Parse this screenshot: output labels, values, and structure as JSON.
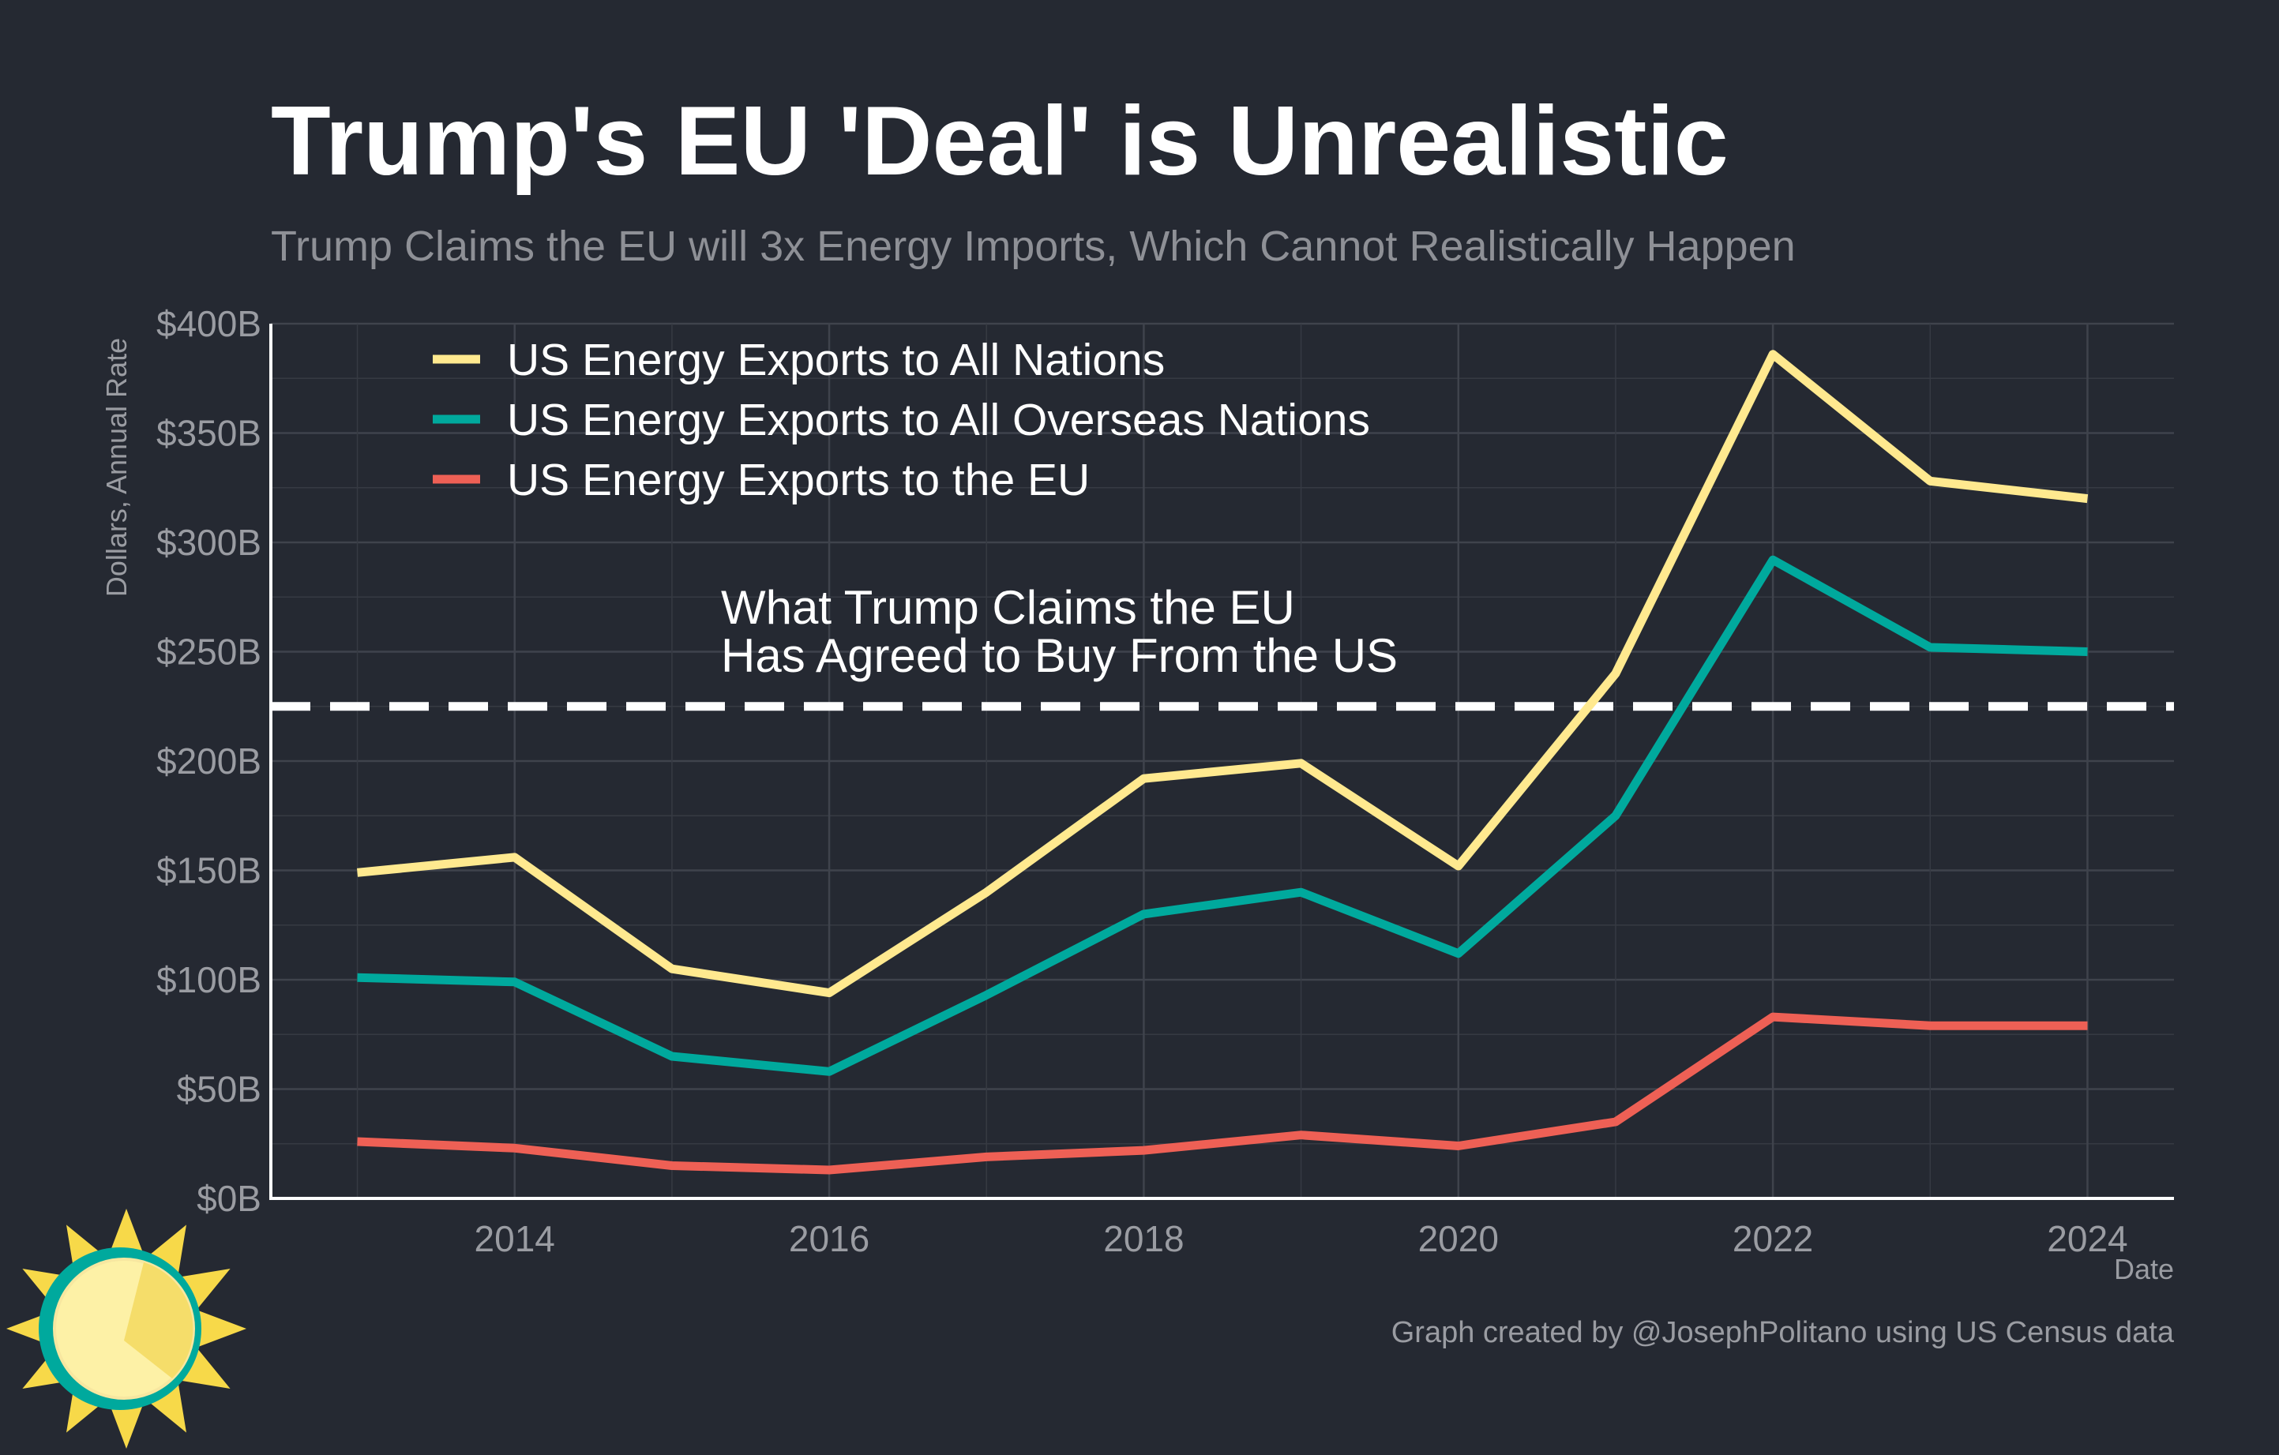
{
  "title": "Trump's EU 'Deal' is Unrealistic",
  "subtitle": "Trump Claims the EU will 3x Energy Imports, Which Cannot Realistically Happen",
  "caption": "Graph created by @JosephPolitano using US Census data",
  "logo": {
    "icon": "sun-logo-icon"
  },
  "chart_data": {
    "type": "line",
    "xlabel": "Date",
    "ylabel": "Dollars, Annual Rate",
    "x": [
      2013,
      2014,
      2015,
      2016,
      2017,
      2018,
      2019,
      2020,
      2021,
      2022,
      2023,
      2024
    ],
    "xlim": [
      2012.45,
      2024.55
    ],
    "ylim": [
      0,
      400
    ],
    "x_ticks": [
      2014,
      2016,
      2018,
      2020,
      2022,
      2024
    ],
    "x_tick_labels": [
      "2014",
      "2016",
      "2018",
      "2020",
      "2022",
      "2024"
    ],
    "y_ticks": [
      0,
      50,
      100,
      150,
      200,
      250,
      300,
      350,
      400
    ],
    "y_tick_labels": [
      "$0B",
      "$50B",
      "$100B",
      "$150B",
      "$200B",
      "$250B",
      "$300B",
      "$350B",
      "$400B"
    ],
    "grid": true,
    "legend_position": "top-left",
    "series": [
      {
        "name": "US Energy Exports to All Nations",
        "color": "#FFE98F",
        "values": [
          149,
          156,
          105,
          94,
          140,
          192,
          199,
          152,
          240,
          386,
          328,
          320
        ]
      },
      {
        "name": "US Energy Exports to All Overseas Nations",
        "color": "#00A99D",
        "values": [
          101,
          99,
          65,
          58,
          93,
          130,
          140,
          112,
          175,
          292,
          252,
          250
        ]
      },
      {
        "name": "US Energy Exports to the EU",
        "color": "#EE6055",
        "values": [
          26,
          23,
          15,
          13,
          19,
          22,
          29,
          24,
          35,
          83,
          79,
          79
        ]
      }
    ],
    "reference_line": {
      "y": 225,
      "style": "dashed",
      "color": "#FFFFFF"
    },
    "annotation": {
      "lines": [
        "What Trump Claims the EU",
        "Has Agreed to Buy From the US"
      ]
    }
  }
}
